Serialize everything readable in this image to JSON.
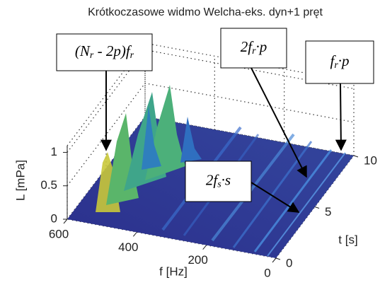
{
  "chart_data": {
    "type": "surface",
    "title": "Krótkoczasowe widmo Welcha-eks. dyn+1 pręt",
    "xlabel": "f [Hz]",
    "ylabel": "t [s]",
    "zlabel": "L [mPa]",
    "xlim": [
      0,
      600
    ],
    "xticks": [
      0,
      200,
      400,
      600
    ],
    "ylim": [
      0,
      10
    ],
    "yticks": [
      0,
      5,
      10
    ],
    "zlim": [
      0,
      1.1
    ],
    "zticks": [
      0,
      0.5,
      1
    ],
    "grid": true,
    "annotations": [
      {
        "parts": [
          "(N",
          "r",
          " - 2p)f",
          "r"
        ]
      },
      {
        "parts": [
          "2f",
          "r",
          "·p"
        ]
      },
      {
        "parts": [
          "f",
          "r",
          "·p"
        ]
      },
      {
        "parts": [
          "2f",
          "s",
          "·s"
        ]
      }
    ]
  }
}
